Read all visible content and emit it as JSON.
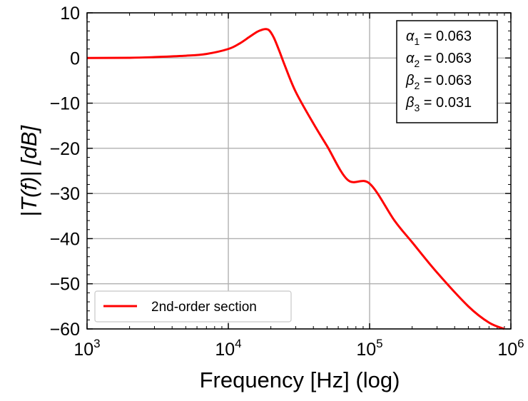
{
  "chart_data": {
    "type": "line",
    "xlabel": "Frequency [Hz] (log)",
    "ylabel": "|T(f)|   [dB]",
    "x_scale": "log",
    "xlim": [
      1000,
      1000000
    ],
    "ylim": [
      -60,
      10
    ],
    "x_ticks": [
      {
        "value": 1000,
        "base": "10",
        "exp": "3"
      },
      {
        "value": 10000,
        "base": "10",
        "exp": "4"
      },
      {
        "value": 100000,
        "base": "10",
        "exp": "5"
      },
      {
        "value": 1000000,
        "base": "10",
        "exp": "6"
      }
    ],
    "y_ticks": [
      10,
      0,
      -10,
      -20,
      -30,
      -40,
      -50,
      -60
    ],
    "y_tick_labels": [
      "10",
      "0",
      "−10",
      "−20",
      "−30",
      "−40",
      "−50",
      "−60"
    ],
    "grid": true,
    "legend": {
      "position": "lower-left",
      "entries": [
        "2nd-order section"
      ]
    },
    "series": [
      {
        "name": "2nd-order section",
        "color": "#ff0000",
        "x": [
          1000,
          2000,
          3000,
          5000,
          7000,
          10000,
          12000,
          14000,
          16000,
          17500,
          18500,
          19500,
          21000,
          23000,
          25000,
          30000,
          40000,
          50000,
          70000,
          100000,
          150000,
          200000,
          300000,
          500000,
          700000,
          900000
        ],
        "y": [
          0,
          0.05,
          0.2,
          0.5,
          0.9,
          2.0,
          3.2,
          4.6,
          5.8,
          6.3,
          6.4,
          6.1,
          4.5,
          1.5,
          -1.5,
          -7.5,
          -14.5,
          -19.5,
          -27.0,
          -27.8,
          -36.0,
          -40.8,
          -47.5,
          -55.0,
          -58.6,
          -60.0
        ]
      }
    ],
    "annotation": {
      "lines": [
        {
          "sym": "α",
          "sub": "1",
          "eq": " = ",
          "val": "0.063"
        },
        {
          "sym": "α",
          "sub": "2",
          "eq": " = ",
          "val": "0.063"
        },
        {
          "sym": "β",
          "sub": "2",
          "eq": " = ",
          "val": "0.063"
        },
        {
          "sym": "β",
          "sub": "3",
          "eq": " = ",
          "val": "0.031"
        }
      ]
    }
  }
}
